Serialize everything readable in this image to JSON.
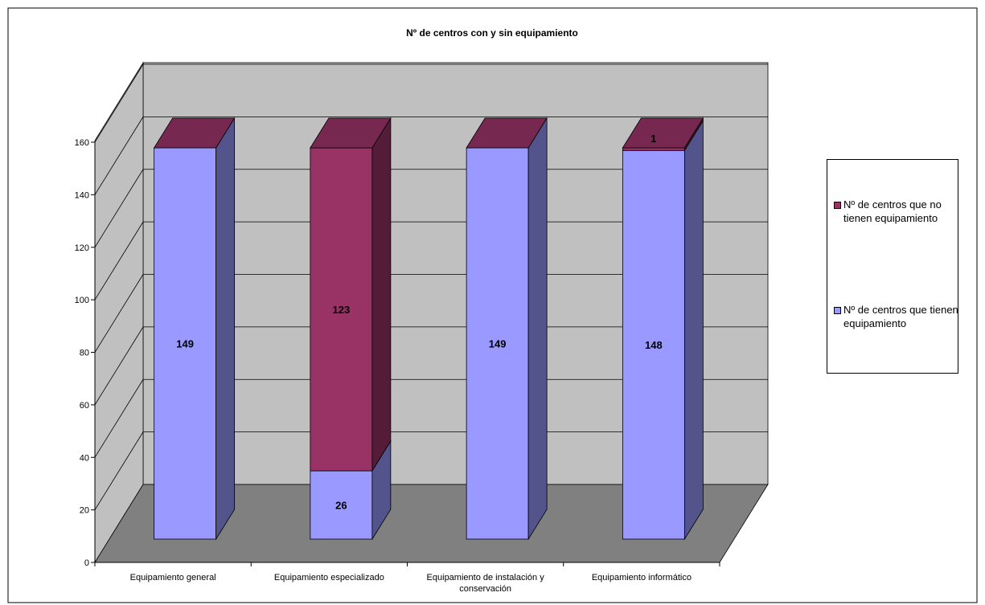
{
  "chart_data": {
    "type": "bar",
    "stacked": true,
    "three_d": true,
    "title": "Nº de centros con y sin equipamiento",
    "categories": [
      "Equipamiento general",
      "Equipamiento especializado",
      "Equipamiento de instalación y conservación",
      "Equipamiento informático"
    ],
    "series": [
      {
        "name": "Nº de centros que tienen equipamiento",
        "values": [
          149,
          26,
          149,
          148
        ],
        "color": "#9999ff"
      },
      {
        "name": "Nº de centros que no tienen equipamiento",
        "values": [
          0,
          123,
          0,
          1
        ],
        "color": "#993366"
      }
    ],
    "data_labels": {
      "Nº de centros que tienen equipamiento": [
        "149",
        "26",
        "149",
        "148"
      ],
      "Nº de centros que no tienen equipamiento": [
        "",
        "123",
        "",
        "1"
      ]
    },
    "ylim": [
      0,
      160
    ],
    "yticks": [
      0,
      20,
      40,
      60,
      80,
      100,
      120,
      140,
      160
    ],
    "grid": true,
    "legend_position": "right",
    "colors": {
      "back_wall": "#c0c0c0",
      "side_wall": "#c0c0c0",
      "floor": "#808080"
    }
  }
}
